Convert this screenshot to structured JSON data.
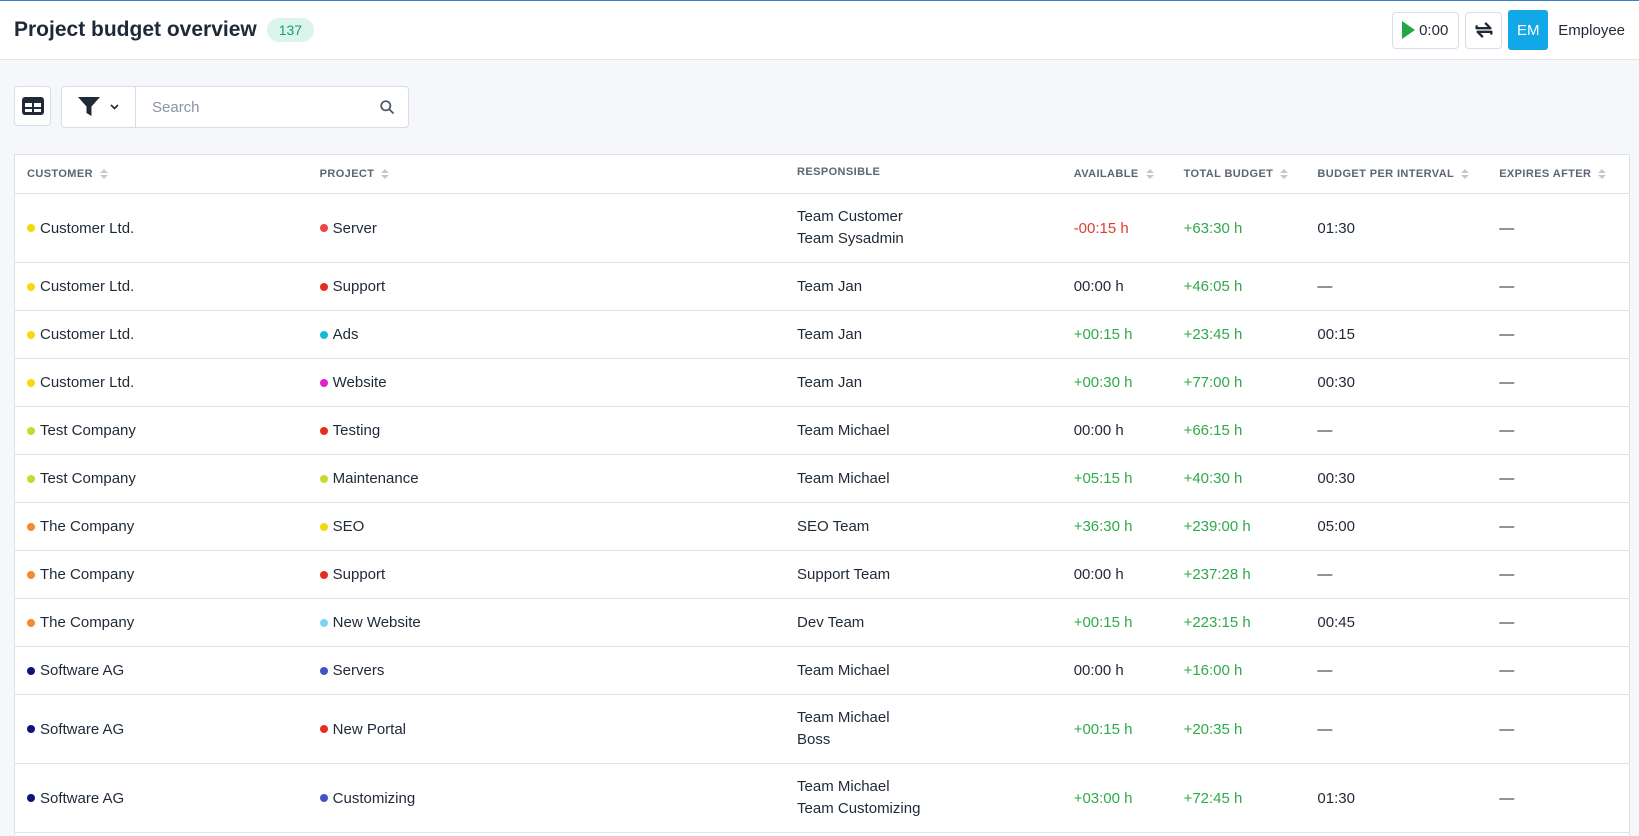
{
  "header": {
    "title": "Project budget overview",
    "count": "137",
    "timer": "0:00",
    "avatar_initials": "EM",
    "user_name": "Employee"
  },
  "toolbar": {
    "search_placeholder": "Search"
  },
  "table": {
    "columns": [
      "CUSTOMER",
      "PROJECT",
      "RESPONSIBLE",
      "AVAILABLE",
      "TOTAL BUDGET",
      "BUDGET PER INTERVAL",
      "EXPIRES AFTER"
    ],
    "rows": [
      {
        "customer": "Customer Ltd.",
        "customer_color": "#f5d90a",
        "project": "Server",
        "project_color": "#ef4444",
        "responsible": [
          "Team Customer",
          "Team Sysadmin"
        ],
        "available": "-00:15 h",
        "available_status": "neg",
        "total_budget": "+63:30 h",
        "budget_per_interval": "01:30",
        "expires_after": "—"
      },
      {
        "customer": "Customer Ltd.",
        "customer_color": "#f5d90a",
        "project": "Support",
        "project_color": "#e62e1f",
        "responsible": [
          "Team Jan"
        ],
        "available": "00:00 h",
        "available_status": "neu",
        "total_budget": "+46:05 h",
        "budget_per_interval": "—",
        "expires_after": "—"
      },
      {
        "customer": "Customer Ltd.",
        "customer_color": "#f5d90a",
        "project": "Ads",
        "project_color": "#17b8d6",
        "responsible": [
          "Team Jan"
        ],
        "available": "+00:15 h",
        "available_status": "pos",
        "total_budget": "+23:45 h",
        "budget_per_interval": "00:15",
        "expires_after": "—"
      },
      {
        "customer": "Customer Ltd.",
        "customer_color": "#f5d90a",
        "project": "Website",
        "project_color": "#e020c8",
        "responsible": [
          "Team Jan"
        ],
        "available": "+00:30 h",
        "available_status": "pos",
        "total_budget": "+77:00 h",
        "budget_per_interval": "00:30",
        "expires_after": "—"
      },
      {
        "customer": "Test Company",
        "customer_color": "#c9d930",
        "project": "Testing",
        "project_color": "#e62e1f",
        "responsible": [
          "Team Michael"
        ],
        "available": "00:00 h",
        "available_status": "neu",
        "total_budget": "+66:15 h",
        "budget_per_interval": "—",
        "expires_after": "—"
      },
      {
        "customer": "Test Company",
        "customer_color": "#c9d930",
        "project": "Maintenance",
        "project_color": "#c9d930",
        "responsible": [
          "Team Michael"
        ],
        "available": "+05:15 h",
        "available_status": "pos",
        "total_budget": "+40:30 h",
        "budget_per_interval": "00:30",
        "expires_after": "—"
      },
      {
        "customer": "The Company",
        "customer_color": "#f58a2a",
        "project": "SEO",
        "project_color": "#f5d90a",
        "responsible": [
          "SEO Team"
        ],
        "available": "+36:30 h",
        "available_status": "pos",
        "total_budget": "+239:00 h",
        "budget_per_interval": "05:00",
        "expires_after": "—"
      },
      {
        "customer": "The Company",
        "customer_color": "#f58a2a",
        "project": "Support",
        "project_color": "#e62e1f",
        "responsible": [
          "Support Team"
        ],
        "available": "00:00 h",
        "available_status": "neu",
        "total_budget": "+237:28 h",
        "budget_per_interval": "—",
        "expires_after": "—"
      },
      {
        "customer": "The Company",
        "customer_color": "#f58a2a",
        "project": "New Website",
        "project_color": "#7dd3f5",
        "responsible": [
          "Dev Team"
        ],
        "available": "+00:15 h",
        "available_status": "pos",
        "total_budget": "+223:15 h",
        "budget_per_interval": "00:45",
        "expires_after": "—"
      },
      {
        "customer": "Software AG",
        "customer_color": "#10127a",
        "project": "Servers",
        "project_color": "#4353c4",
        "responsible": [
          "Team Michael"
        ],
        "available": "00:00 h",
        "available_status": "neu",
        "total_budget": "+16:00 h",
        "budget_per_interval": "—",
        "expires_after": "—"
      },
      {
        "customer": "Software AG",
        "customer_color": "#10127a",
        "project": "New Portal",
        "project_color": "#e62e1f",
        "responsible": [
          "Team Michael",
          "Boss"
        ],
        "available": "+00:15 h",
        "available_status": "pos",
        "total_budget": "+20:35 h",
        "budget_per_interval": "—",
        "expires_after": "—"
      },
      {
        "customer": "Software AG",
        "customer_color": "#10127a",
        "project": "Customizing",
        "project_color": "#4353c4",
        "responsible": [
          "Team Michael",
          "Team Customizing"
        ],
        "available": "+03:00 h",
        "available_status": "pos",
        "total_budget": "+72:45 h",
        "budget_per_interval": "01:30",
        "expires_after": "—"
      }
    ]
  }
}
